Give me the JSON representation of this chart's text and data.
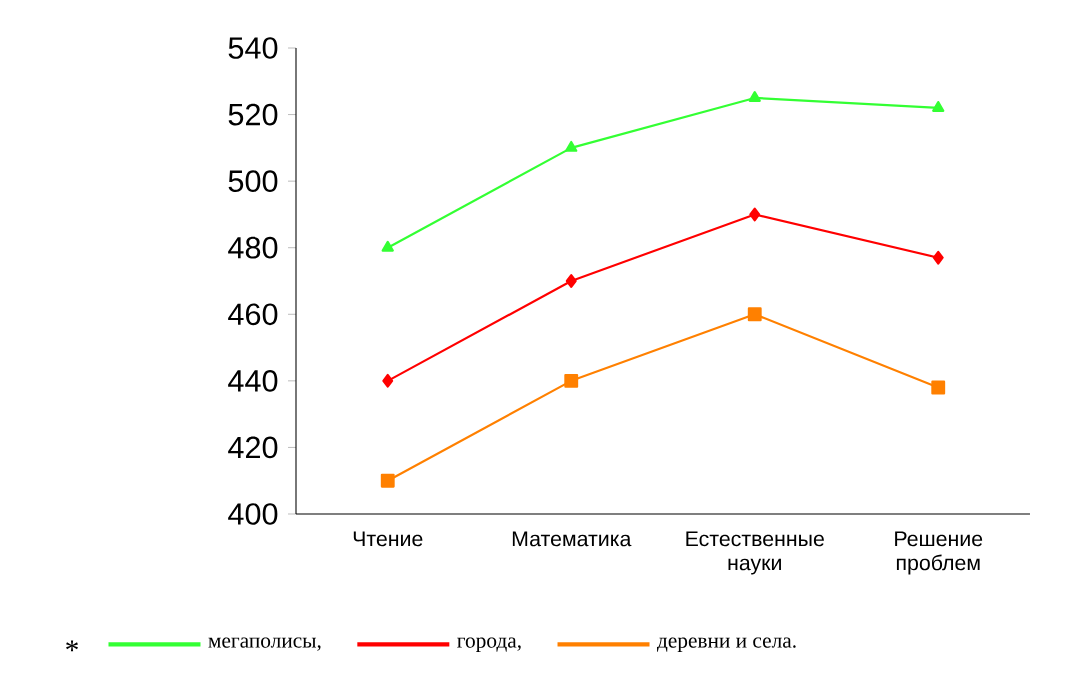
{
  "chart_data": {
    "type": "line",
    "categories": [
      "Чтение",
      "Математика",
      "Естественные науки",
      "Решение проблем"
    ],
    "series": [
      {
        "name": "мегаполисы,",
        "color": "#33ff33",
        "marker": "triangle",
        "values": [
          480,
          510,
          525,
          522
        ]
      },
      {
        "name": "города,",
        "color": "#ff0000",
        "marker": "diamond",
        "values": [
          440,
          470,
          490,
          477
        ]
      },
      {
        "name": "деревни и села.",
        "color": "#ff8000",
        "marker": "square",
        "values": [
          410,
          440,
          460,
          438
        ]
      }
    ],
    "ylim": [
      400,
      540
    ],
    "yticks": [
      400,
      420,
      440,
      460,
      480,
      500,
      520,
      540
    ],
    "grid": false,
    "legend": "bottom",
    "line_style": "solid",
    "annotations": [
      "*"
    ]
  }
}
